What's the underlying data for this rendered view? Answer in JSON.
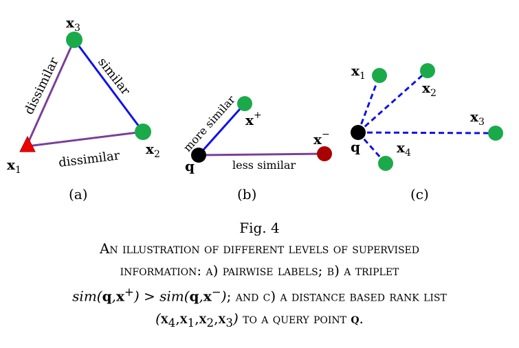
{
  "panels": {
    "a": {
      "label": "(a)",
      "nodes": {
        "x1": "x",
        "x1_sub": "1",
        "x2": "x",
        "x2_sub": "2",
        "x3": "x",
        "x3_sub": "3"
      },
      "edges": {
        "x1_x3": "dissimilar",
        "x3_x2": "similar",
        "x1_x2": "dissimilar"
      }
    },
    "b": {
      "label": "(b)",
      "nodes": {
        "q": "q",
        "xplus": "x",
        "xplus_sup": "+",
        "xminus": "x",
        "xminus_sup": "−"
      },
      "edges": {
        "q_xplus": "more similar",
        "q_xminus": "less similar"
      }
    },
    "c": {
      "label": "(c)",
      "nodes": {
        "q": "q",
        "x1": "x",
        "x1_sub": "1",
        "x2": "x",
        "x2_sub": "2",
        "x3": "x",
        "x3_sub": "3",
        "x4": "x",
        "x4_sub": "4"
      }
    }
  },
  "caption": {
    "fig_number": "Fig. 4",
    "line1": "An illustration of different levels of supervised",
    "line2": "information: a) pairwise labels; b) a triplet",
    "line3": {
      "sim1": "sim(",
      "q1": "q",
      "comma1": ",",
      "xplus": "x",
      "xplus_sup": "+",
      "gt": ") > sim(",
      "q2": "q",
      "comma2": ",",
      "xminus": "x",
      "xminus_sup": "−",
      "close": ")",
      "rest": "; and c) a distance based rank list"
    },
    "line4": {
      "open": "(",
      "x4": "x",
      "s4": "4",
      "c1": ",",
      "x1": "x",
      "s1": "1",
      "c2": ",",
      "x2": "x",
      "s2": "2",
      "c3": ",",
      "x3": "x",
      "s3": "3",
      "close": ")",
      "rest": " to a query point ",
      "q": "q",
      "period": "."
    }
  },
  "colors": {
    "green": "#1aaa4a",
    "red": "#ee0000",
    "dark_red": "#aa0000",
    "purple": "#7a3f98",
    "blue": "#1010ee",
    "black": "#000000"
  }
}
